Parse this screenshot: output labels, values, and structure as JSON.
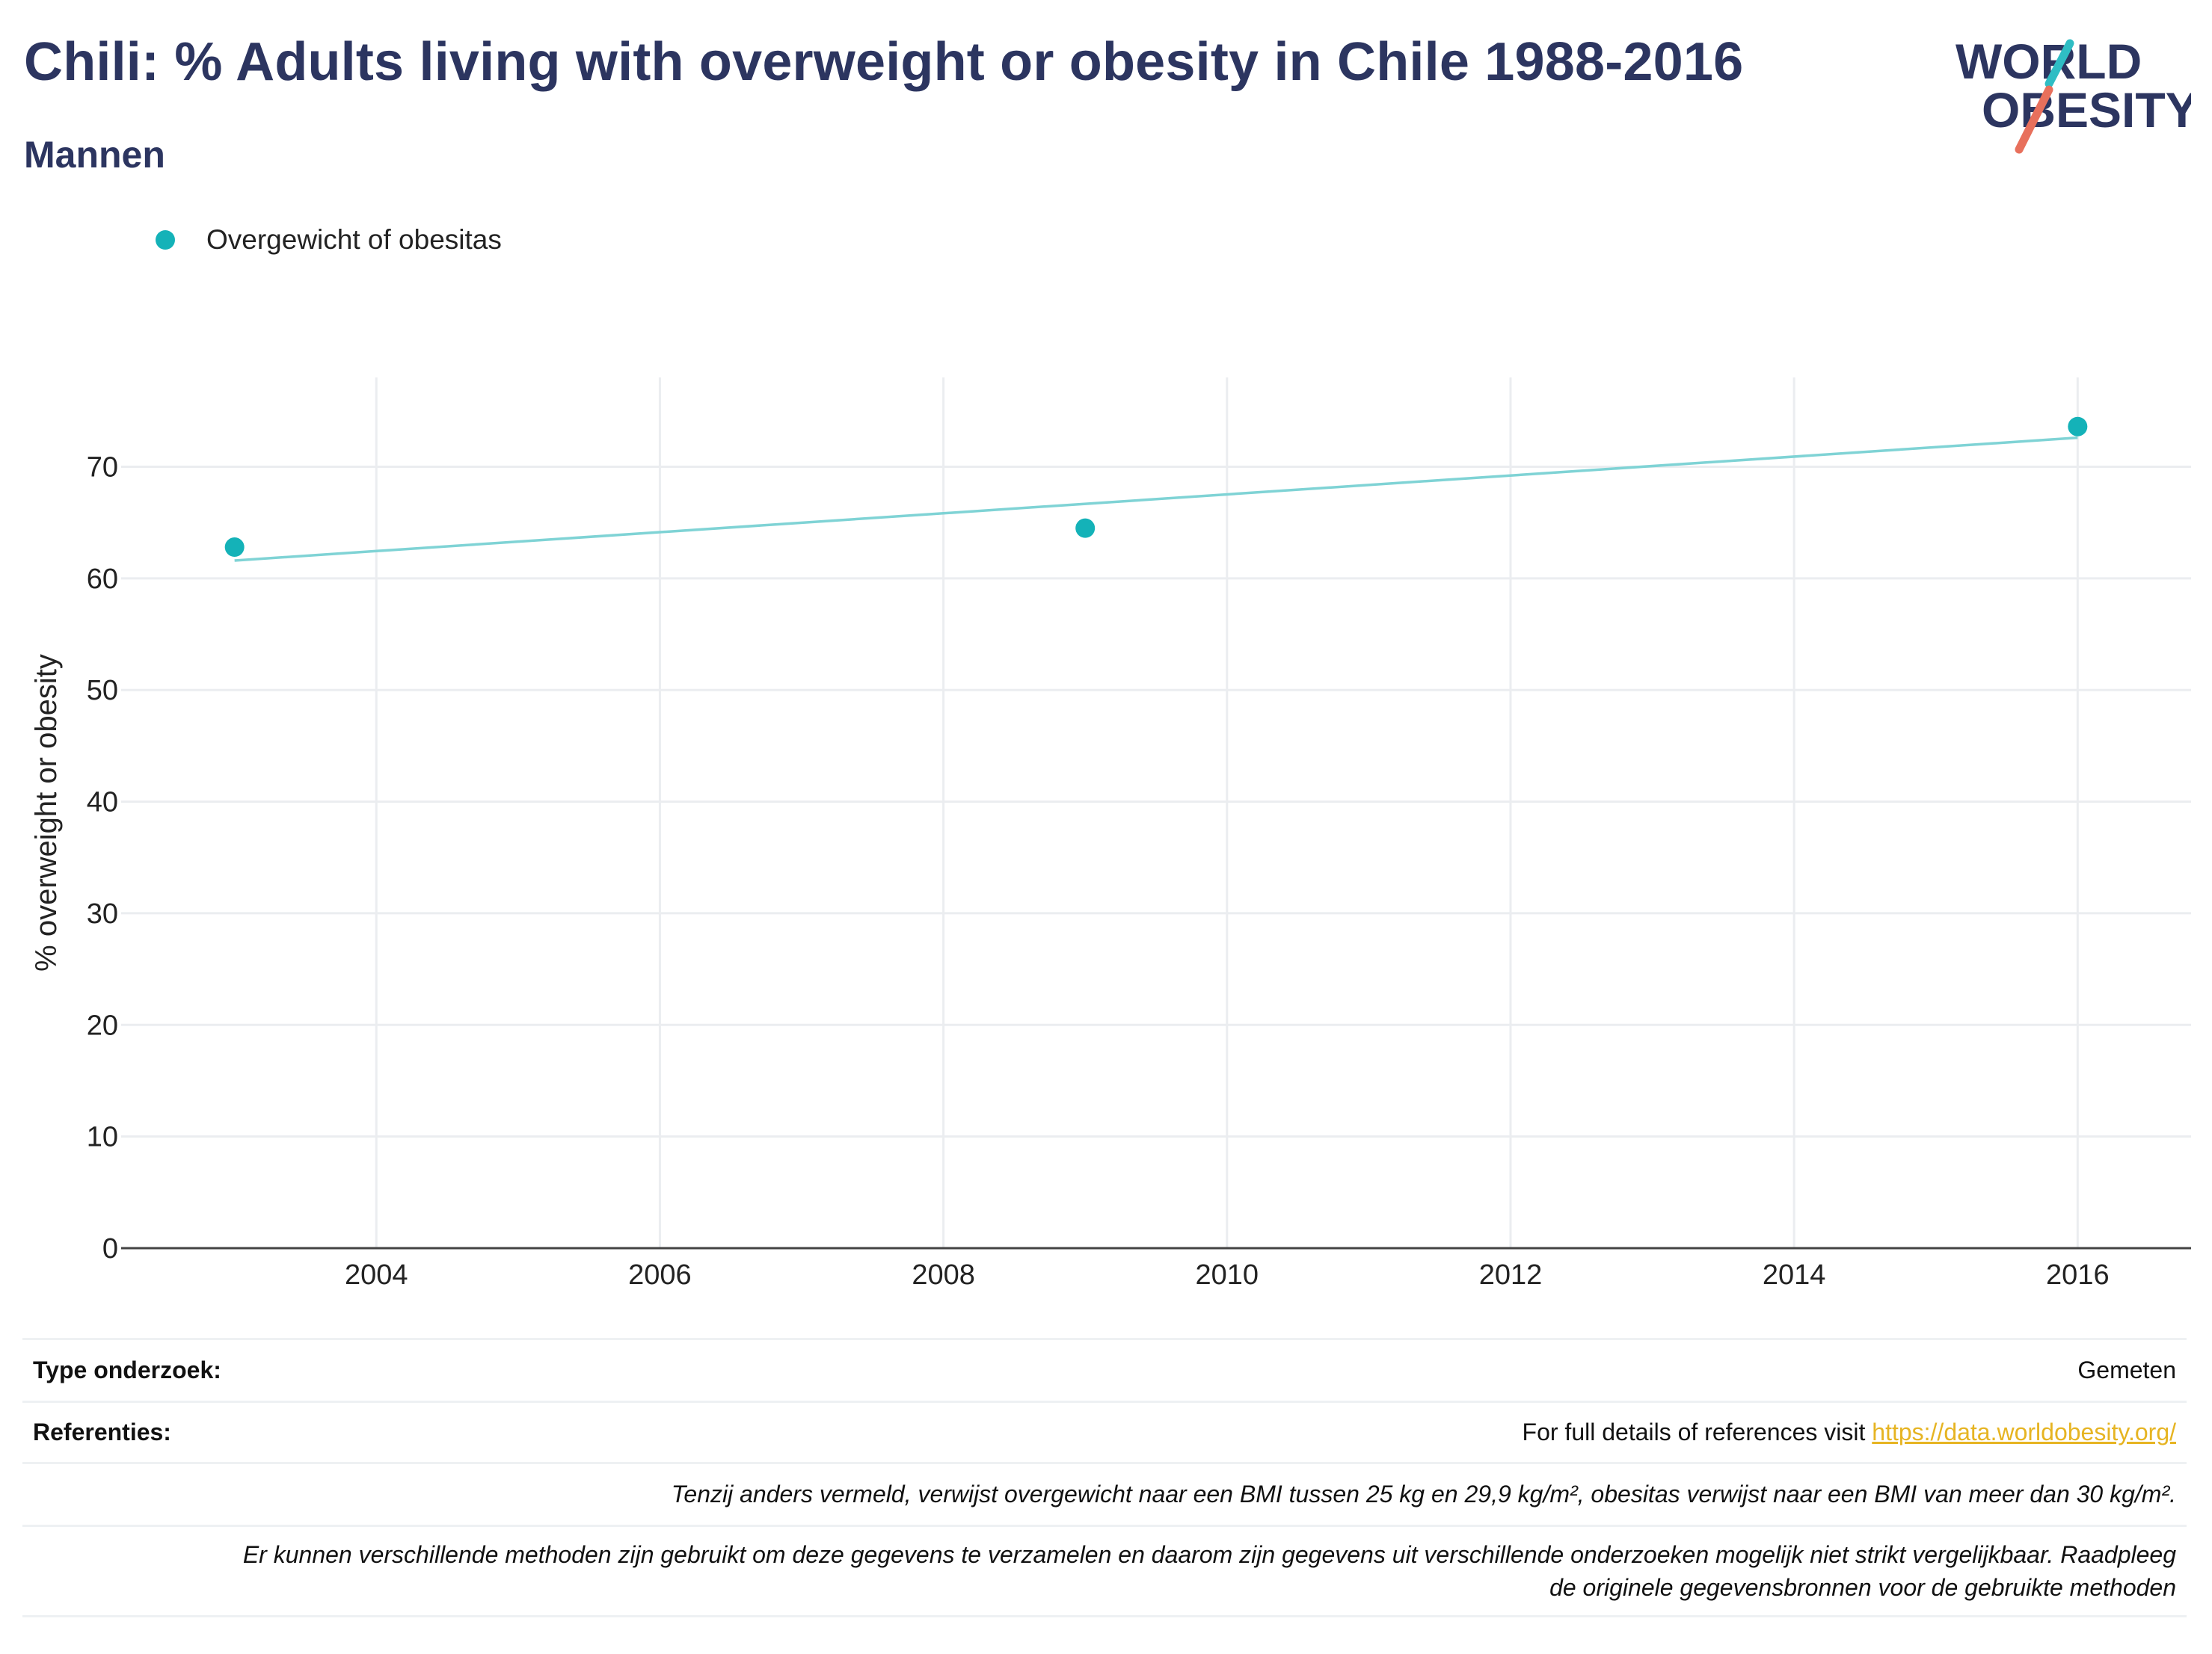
{
  "title": "Chili: % Adults living with overweight or obesity in Chile 1988-2016",
  "subtitle": "Mannen",
  "logo": {
    "line1": "WORLD",
    "line2": "OBESITY",
    "accent_teal": "#2fbdc4",
    "accent_red": "#e8705c",
    "text_color": "#2c3560"
  },
  "chart_data": {
    "type": "scatter",
    "title": "",
    "xlabel": "",
    "ylabel": "% overweight or obesity",
    "xlim": [
      2002.2,
      2016.8
    ],
    "ylim": [
      0,
      78
    ],
    "x_ticks": [
      2004,
      2006,
      2008,
      2010,
      2012,
      2014,
      2016
    ],
    "y_ticks": [
      0,
      10,
      20,
      30,
      40,
      50,
      60,
      70
    ],
    "grid": true,
    "legend_position": "top-left",
    "series": [
      {
        "name": "Overgewicht of obesitas",
        "color": "#14b2b8",
        "points": [
          {
            "x": 2003,
            "y": 62.8
          },
          {
            "x": 2009,
            "y": 64.5
          },
          {
            "x": 2016,
            "y": 73.6
          }
        ]
      }
    ],
    "trendline": {
      "color": "#7fd3d5",
      "start": {
        "x": 2003,
        "y": 61.6
      },
      "end": {
        "x": 2016,
        "y": 72.6
      }
    }
  },
  "footer": {
    "type_label": "Type onderzoek:",
    "type_value": "Gemeten",
    "ref_label": "Referenties:",
    "ref_text": "For full details of references visit ",
    "ref_link": "https://data.worldobesity.org/",
    "note1": "Tenzij anders vermeld, verwijst overgewicht naar een BMI tussen 25 kg en 29,9 kg/m², obesitas verwijst naar een BMI van meer dan 30 kg/m².",
    "note2_line1": "Er kunnen verschillende methoden zijn gebruikt om deze gegevens te verzamelen en daarom zijn gegevens uit verschillende onderzoeken mogelijk niet strikt vergelijkbaar. Raadpleeg",
    "note2_line2": "de originele gegevensbronnen voor de gebruikte methoden"
  }
}
